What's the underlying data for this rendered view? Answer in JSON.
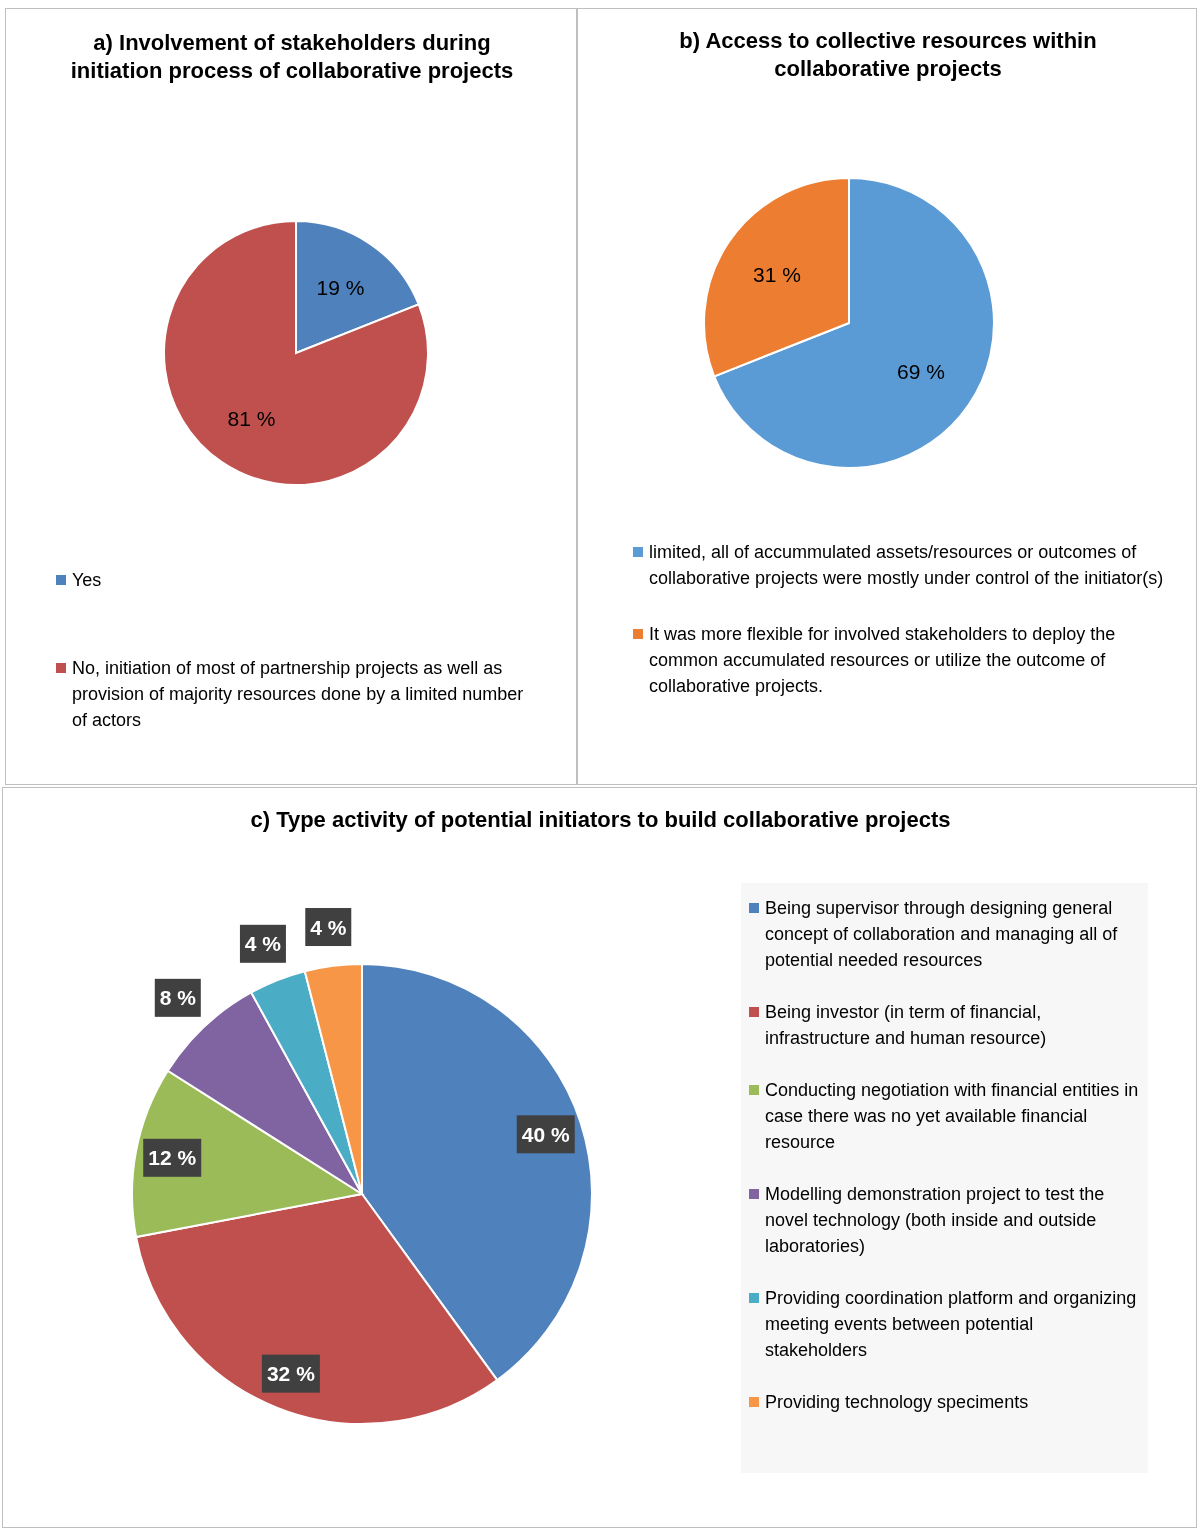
{
  "chart_data": [
    {
      "type": "pie",
      "title": "a) Involvement of stakeholders during initiation process of collaborative projects",
      "categories": [
        "Yes",
        "No, initiation of most of partnership projects as well as provision  of majority resources done by a limited number of actors"
      ],
      "values": [
        19,
        81
      ],
      "colors": [
        "#4f81bd",
        "#c0504d"
      ],
      "value_labels": [
        "19 %",
        "81 %"
      ],
      "legend": "bottom left"
    },
    {
      "type": "pie",
      "title": "b) Access to collective resources within collaborative projects",
      "categories": [
        "limited, all of accummulated assets/resources or outcomes of collaborative projects were mostly under control of the initiator(s)",
        "It was more flexible for involved stakeholders to deploy the common  accumulated resources or utilize the outcome of collaborative projects."
      ],
      "values": [
        69,
        31
      ],
      "colors": [
        "#5b9bd5",
        "#ed7d31"
      ],
      "value_labels": [
        "69 %",
        "31 %"
      ],
      "legend": "bottom"
    },
    {
      "type": "pie",
      "title": "c) Type activity of potential initiators to build collaborative projects",
      "categories": [
        "Being supervisor through designing general concept of collaboration and managing all of potential needed resources",
        "Being investor (in term of financial, infrastructure and human resource)",
        "Conducting negotiation with financial entities in case there was no yet available financial resource",
        "Modelling demonstration project to test the novel technology (both inside and outside laboratories)",
        "Providing coordination platform and organizing meeting events between potential stakeholders",
        "Providing technology speciments"
      ],
      "values": [
        40,
        32,
        12,
        8,
        4,
        4
      ],
      "colors": [
        "#4f81bd",
        "#c0504d",
        "#9bbb59",
        "#8064a2",
        "#4bacc6",
        "#f79646"
      ],
      "value_labels": [
        "40 %",
        "32 %",
        "12 %",
        "8 %",
        "4 %",
        "4 %"
      ],
      "legend": "right"
    }
  ]
}
